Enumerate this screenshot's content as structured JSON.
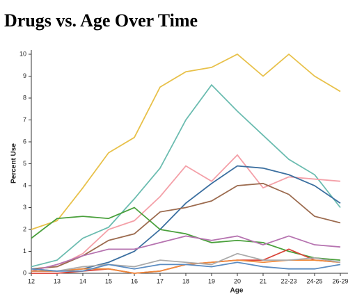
{
  "chart_data": {
    "type": "line",
    "title": "Drugs vs. Age Over Time",
    "x_label": "Age",
    "y_label": "Percent Use",
    "categories": [
      "12",
      "13",
      "14",
      "15",
      "16",
      "17",
      "18",
      "19",
      "20",
      "21",
      "22-23",
      "24-25",
      "26-29"
    ],
    "ylim": [
      0,
      10
    ],
    "yticks": [
      0,
      1,
      2,
      3,
      4,
      5,
      6,
      7,
      8,
      9,
      10
    ],
    "grid": false,
    "series": [
      {
        "color": "#e8c14a",
        "values": [
          2.0,
          2.4,
          3.9,
          5.5,
          6.2,
          8.5,
          9.2,
          9.4,
          10,
          9.0,
          10,
          9.0,
          8.3
        ]
      },
      {
        "color": "#6bbcb0",
        "values": [
          0.3,
          0.6,
          1.6,
          2.1,
          3.4,
          4.8,
          7.0,
          8.6,
          7.4,
          6.3,
          5.2,
          4.5,
          3.0
        ]
      },
      {
        "color": "#f4a0a8",
        "values": [
          0.2,
          0.3,
          0.9,
          2.0,
          2.4,
          3.5,
          4.9,
          4.2,
          5.4,
          3.9,
          4.4,
          4.3,
          4.2
        ]
      },
      {
        "color": "#3b6fa0",
        "values": [
          0.1,
          0.1,
          0.2,
          0.5,
          1.0,
          2.0,
          3.2,
          4.1,
          4.9,
          4.8,
          4.5,
          4.0,
          3.2
        ]
      },
      {
        "color": "#9c6b4f",
        "values": [
          0.2,
          0.3,
          0.8,
          1.5,
          1.8,
          2.8,
          3.0,
          3.3,
          4.0,
          4.1,
          3.6,
          2.6,
          2.3
        ]
      },
      {
        "color": "#4aa03c",
        "values": [
          1.6,
          2.5,
          2.6,
          2.5,
          3.0,
          2.0,
          1.8,
          1.4,
          1.5,
          1.4,
          1.0,
          0.7,
          0.6
        ]
      },
      {
        "color": "#b673b0",
        "values": [
          0.1,
          0.4,
          0.8,
          1.1,
          1.1,
          1.4,
          1.7,
          1.5,
          1.7,
          1.3,
          1.7,
          1.3,
          1.2
        ]
      },
      {
        "color": "#d9453a",
        "values": [
          0.0,
          0.0,
          0.1,
          0.2,
          0.0,
          0.1,
          0.4,
          0.5,
          0.6,
          0.6,
          1.1,
          0.6,
          0.5
        ]
      },
      {
        "color": "#f08a3c",
        "values": [
          0.1,
          0.1,
          0.2,
          0.2,
          0.0,
          0.1,
          0.4,
          0.5,
          0.6,
          0.5,
          0.6,
          0.6,
          0.5
        ]
      },
      {
        "color": "#aaaaaa",
        "values": [
          0.2,
          0.1,
          0.3,
          0.4,
          0.3,
          0.6,
          0.5,
          0.4,
          0.9,
          0.6,
          0.6,
          0.7,
          0.5
        ]
      },
      {
        "color": "#5b8cc2",
        "values": [
          0.2,
          0.1,
          0.1,
          0.4,
          0.2,
          0.4,
          0.4,
          0.3,
          0.5,
          0.3,
          0.2,
          0.2,
          0.4
        ]
      }
    ]
  }
}
